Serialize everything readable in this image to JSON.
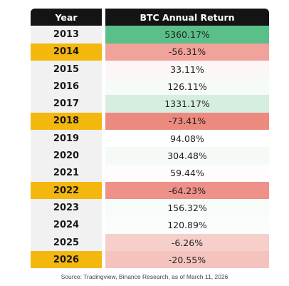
{
  "chart_data": {
    "type": "table",
    "columns": [
      "Year",
      "BTC Annual Return"
    ],
    "rows": [
      {
        "year": "2013",
        "value": 5360.17,
        "label": "5360.17%",
        "color": "#5bbf89",
        "year_bg": "#f1f1f1"
      },
      {
        "year": "2014",
        "value": -56.31,
        "label": "-56.31%",
        "color": "#f1a29a",
        "year_bg": "#f4b70e"
      },
      {
        "year": "2015",
        "value": 33.11,
        "label": "33.11%",
        "color": "#fdf6f6",
        "year_bg": "#f1f1f1"
      },
      {
        "year": "2016",
        "value": 126.11,
        "label": "126.11%",
        "color": "#f7fbf8",
        "year_bg": "#f1f1f1"
      },
      {
        "year": "2017",
        "value": 1331.17,
        "label": "1331.17%",
        "color": "#d6eedf",
        "year_bg": "#f1f1f1"
      },
      {
        "year": "2018",
        "value": -73.41,
        "label": "-73.41%",
        "color": "#ec8a80",
        "year_bg": "#f4b70e"
      },
      {
        "year": "2019",
        "value": 94.08,
        "label": "94.08%",
        "color": "#ffffff",
        "year_bg": "#f1f1f1"
      },
      {
        "year": "2020",
        "value": 304.48,
        "label": "304.48%",
        "color": "#f5faf7",
        "year_bg": "#f1f1f1"
      },
      {
        "year": "2021",
        "value": 59.44,
        "label": "59.44%",
        "color": "#fefcfc",
        "year_bg": "#f1f1f1"
      },
      {
        "year": "2022",
        "value": -64.23,
        "label": "-64.23%",
        "color": "#ee9189",
        "year_bg": "#f4b70e"
      },
      {
        "year": "2023",
        "value": 156.32,
        "label": "156.32%",
        "color": "#f8fcf9",
        "year_bg": "#f1f1f1"
      },
      {
        "year": "2024",
        "value": 120.89,
        "label": "120.89%",
        "color": "#fafdfb",
        "year_bg": "#f1f1f1"
      },
      {
        "year": "2025",
        "value": -6.26,
        "label": "-6.26%",
        "color": "#f6cfcb",
        "year_bg": "#f1f1f1"
      },
      {
        "year": "2026",
        "value": -20.55,
        "label": "-20.55%",
        "color": "#f4c3be",
        "year_bg": "#f4b70e"
      }
    ]
  },
  "source": "Source: Tradingview, Binance Research, as of March 11, 2026"
}
